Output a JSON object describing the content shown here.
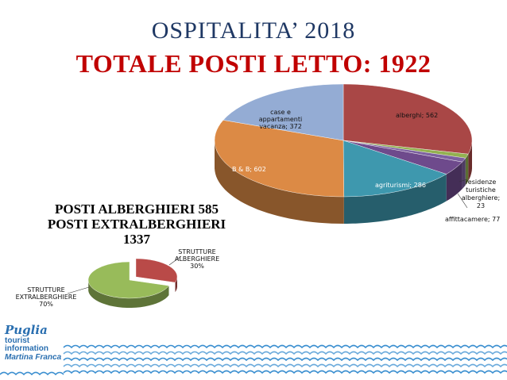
{
  "header": {
    "title": "OSPITALITA’ 2018",
    "subtitle": "TOTALE POSTI LETTO: 1922"
  },
  "summary": {
    "line1": "POSTI ALBERGHIERI 585",
    "line2": "POSTI EXTRALBERGHIERI",
    "line3": "1337"
  },
  "logo": {
    "brand": "Puglia",
    "line1": "tourist",
    "line2": "information",
    "line3": "Martina Franca"
  },
  "colors": {
    "title": "#1f3864",
    "subtitle": "#c00000",
    "wave": "#3b8fd0"
  },
  "chart_data": [
    {
      "type": "pie",
      "title": "",
      "categories": [
        "alberghi",
        "",
        "residenze turistiche alberghiere",
        "affittacamere",
        "agriturismi",
        "B & B",
        "case e appartamenti vacanza"
      ],
      "values": [
        562,
        23,
        23,
        77,
        286,
        602,
        372
      ],
      "labels": [
        "alberghi; 562",
        "",
        "residenze turistiche alberghiere; 23",
        "affittacamere; 77",
        "agriturismi; 286",
        "B & B; 602",
        "case e appartamenti vacanza; 372"
      ],
      "colors": [
        "#a94746",
        "#93b150",
        "#7d60a0",
        "#6e4a8c",
        "#3e98ae",
        "#dc8a45",
        "#94acd4"
      ],
      "style": "3d"
    },
    {
      "type": "pie",
      "title": "",
      "categories": [
        "STRUTTURE ALBERGHIERE",
        "STRUTTURE EXTRALBERGHIERE"
      ],
      "values": [
        30,
        70
      ],
      "labels": [
        "STRUTTURE ALBERGHIERE 30%",
        "STRUTTURE EXTRALBERGHIERE 70%"
      ],
      "colors": [
        "#b94a48",
        "#98bb5a"
      ],
      "style": "3d exploded"
    }
  ]
}
